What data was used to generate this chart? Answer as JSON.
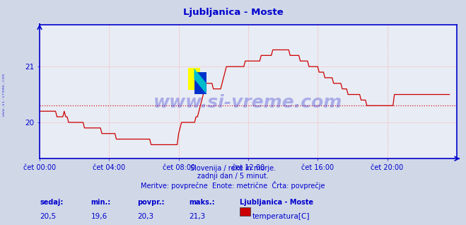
{
  "title": "Ljubljanica - Moste",
  "title_color": "#0000cc",
  "bg_color": "#d0d8e8",
  "plot_bg_color": "#e8ecf4",
  "grid_color": "#ff9999",
  "grid_style": ":",
  "axis_color": "#0000cc",
  "line_color": "#cc0000",
  "avg_line_color": "#cc0000",
  "avg_line_style": ":",
  "avg_value": 20.3,
  "ylim": [
    19.35,
    21.75
  ],
  "yticks": [
    20,
    21
  ],
  "xlabel_color": "#0000cc",
  "xtick_labels": [
    "čet 00:00",
    "čet 04:00",
    "čet 08:00",
    "čet 12:00",
    "čet 16:00",
    "čet 20:00"
  ],
  "xtick_positions": [
    0,
    48,
    96,
    144,
    192,
    240
  ],
  "total_points": 288,
  "watermark": "www.si-vreme.com",
  "watermark_color": "#1a1acc",
  "watermark_alpha": 0.3,
  "subtitle1": "Slovenija / reke in morje.",
  "subtitle2": "zadnji dan / 5 minut.",
  "subtitle3": "Meritve: povprečne  Enote: metrične  Črta: povprečje",
  "subtitle_color": "#0000cc",
  "footer_sedaj_label": "sedaj:",
  "footer_min_label": "min.:",
  "footer_povpr_label": "povpr.:",
  "footer_maks_label": "maks.:",
  "footer_sedaj_val": "20,5",
  "footer_min_val": "19,6",
  "footer_povpr_val": "20,3",
  "footer_maks_val": "21,3",
  "footer_station": "Ljubljanica - Moste",
  "footer_series": "temperatura[C]",
  "footer_color": "#0000cc",
  "footer_val_color": "#0000cc",
  "left_label": "www.si-vreme.com",
  "left_label_color": "#0000cc",
  "temperature_data": [
    20.2,
    20.2,
    20.2,
    20.2,
    20.2,
    20.2,
    20.2,
    20.2,
    20.2,
    20.2,
    20.2,
    20.2,
    20.1,
    20.1,
    20.1,
    20.1,
    20.1,
    20.2,
    20.1,
    20.1,
    20.0,
    20.0,
    20.0,
    20.0,
    20.0,
    20.0,
    20.0,
    20.0,
    20.0,
    20.0,
    20.0,
    19.9,
    19.9,
    19.9,
    19.9,
    19.9,
    19.9,
    19.9,
    19.9,
    19.9,
    19.9,
    19.9,
    19.9,
    19.8,
    19.8,
    19.8,
    19.8,
    19.8,
    19.8,
    19.8,
    19.8,
    19.8,
    19.8,
    19.7,
    19.7,
    19.7,
    19.7,
    19.7,
    19.7,
    19.7,
    19.7,
    19.7,
    19.7,
    19.7,
    19.7,
    19.7,
    19.7,
    19.7,
    19.7,
    19.7,
    19.7,
    19.7,
    19.7,
    19.7,
    19.7,
    19.7,
    19.7,
    19.6,
    19.6,
    19.6,
    19.6,
    19.6,
    19.6,
    19.6,
    19.6,
    19.6,
    19.6,
    19.6,
    19.6,
    19.6,
    19.6,
    19.6,
    19.6,
    19.6,
    19.6,
    19.6,
    19.8,
    19.9,
    20.0,
    20.0,
    20.0,
    20.0,
    20.0,
    20.0,
    20.0,
    20.0,
    20.0,
    20.0,
    20.1,
    20.1,
    20.2,
    20.3,
    20.4,
    20.5,
    20.6,
    20.7,
    20.7,
    20.7,
    20.7,
    20.7,
    20.6,
    20.6,
    20.6,
    20.6,
    20.6,
    20.6,
    20.7,
    20.8,
    20.9,
    21.0,
    21.0,
    21.0,
    21.0,
    21.0,
    21.0,
    21.0,
    21.0,
    21.0,
    21.0,
    21.0,
    21.0,
    21.0,
    21.1,
    21.1,
    21.1,
    21.1,
    21.1,
    21.1,
    21.1,
    21.1,
    21.1,
    21.1,
    21.1,
    21.2,
    21.2,
    21.2,
    21.2,
    21.2,
    21.2,
    21.2,
    21.2,
    21.3,
    21.3,
    21.3,
    21.3,
    21.3,
    21.3,
    21.3,
    21.3,
    21.3,
    21.3,
    21.3,
    21.3,
    21.2,
    21.2,
    21.2,
    21.2,
    21.2,
    21.2,
    21.2,
    21.1,
    21.1,
    21.1,
    21.1,
    21.1,
    21.1,
    21.0,
    21.0,
    21.0,
    21.0,
    21.0,
    21.0,
    21.0,
    20.9,
    20.9,
    20.9,
    20.9,
    20.8,
    20.8,
    20.8,
    20.8,
    20.8,
    20.8,
    20.7,
    20.7,
    20.7,
    20.7,
    20.7,
    20.7,
    20.6,
    20.6,
    20.6,
    20.6,
    20.5,
    20.5,
    20.5,
    20.5,
    20.5,
    20.5,
    20.5,
    20.5,
    20.5,
    20.4,
    20.4,
    20.4,
    20.4,
    20.3,
    20.3,
    20.3,
    20.3,
    20.3,
    20.3,
    20.3,
    20.3,
    20.3,
    20.3,
    20.3,
    20.3,
    20.3,
    20.3,
    20.3,
    20.3,
    20.3,
    20.3,
    20.3,
    20.5,
    20.5,
    20.5,
    20.5,
    20.5,
    20.5,
    20.5,
    20.5,
    20.5,
    20.5,
    20.5,
    20.5,
    20.5,
    20.5,
    20.5,
    20.5,
    20.5,
    20.5,
    20.5,
    20.5,
    20.5,
    20.5,
    20.5,
    20.5,
    20.5,
    20.5,
    20.5,
    20.5,
    20.5,
    20.5,
    20.5,
    20.5,
    20.5,
    20.5,
    20.5,
    20.5,
    20.5,
    20.5,
    20.5
  ]
}
